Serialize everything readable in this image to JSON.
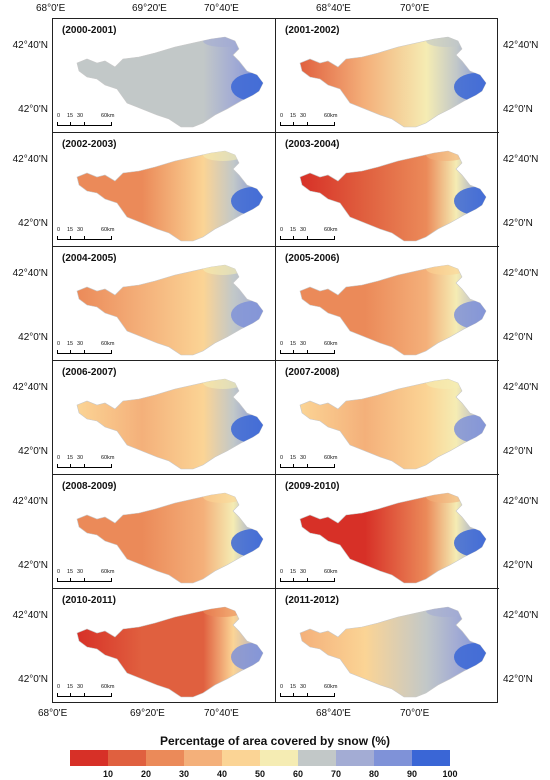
{
  "top_axis": {
    "left": [
      "68°0'E",
      "69°20'E",
      "70°40'E"
    ],
    "right": [
      "68°40'E",
      "70°0'E"
    ]
  },
  "bottom_axis": {
    "left": [
      "68°0'E",
      "69°20'E",
      "70°40'E"
    ],
    "right": [
      "68°40'E",
      "70°0'E"
    ]
  },
  "latitude_labels": [
    "42°40'N",
    "42°0'N"
  ],
  "scale_bar": {
    "labels": [
      "0",
      "15",
      "30",
      "60km"
    ]
  },
  "panels": [
    {
      "title": "(2000-2001)",
      "west": 60,
      "west_mid": 62,
      "center": 68,
      "east": 82
    },
    {
      "title": "(2001-2002)",
      "west": 15,
      "west_mid": 30,
      "center": 50,
      "east": 82
    },
    {
      "title": "(2002-2003)",
      "west": 22,
      "west_mid": 28,
      "center": 40,
      "east": 80
    },
    {
      "title": "(2003-2004)",
      "west": 8,
      "west_mid": 12,
      "center": 25,
      "east": 85
    },
    {
      "title": "(2004-2005)",
      "west": 25,
      "west_mid": 30,
      "center": 45,
      "east": 78
    },
    {
      "title": "(2005-2006)",
      "west": 20,
      "west_mid": 22,
      "center": 35,
      "east": 70
    },
    {
      "title": "(2006-2007)",
      "west": 40,
      "west_mid": 38,
      "center": 45,
      "east": 80
    },
    {
      "title": "(2007-2008)",
      "west": 40,
      "west_mid": 35,
      "center": 45,
      "east": 72
    },
    {
      "title": "(2008-2009)",
      "west": 20,
      "west_mid": 22,
      "center": 38,
      "east": 80
    },
    {
      "title": "(2009-2010)",
      "west": 8,
      "west_mid": 6,
      "center": 28,
      "east": 82
    },
    {
      "title": "(2010-2011)",
      "west": 8,
      "west_mid": 10,
      "center": 15,
      "east": 72
    },
    {
      "title": "(2011-2012)",
      "west": 30,
      "west_mid": 40,
      "center": 62,
      "east": 80
    }
  ],
  "legend": {
    "title": "Percentage of area covered by snow (%)",
    "colors": [
      "#d73027",
      "#e0603f",
      "#eb8a59",
      "#f4b07a",
      "#fbd495",
      "#f5ecb3",
      "#c2c8c8",
      "#a3acd4",
      "#7f92d8",
      "#3a66d6"
    ],
    "ticks": [
      "10",
      "20",
      "30",
      "40",
      "50",
      "60",
      "70",
      "80",
      "90",
      "100"
    ]
  }
}
